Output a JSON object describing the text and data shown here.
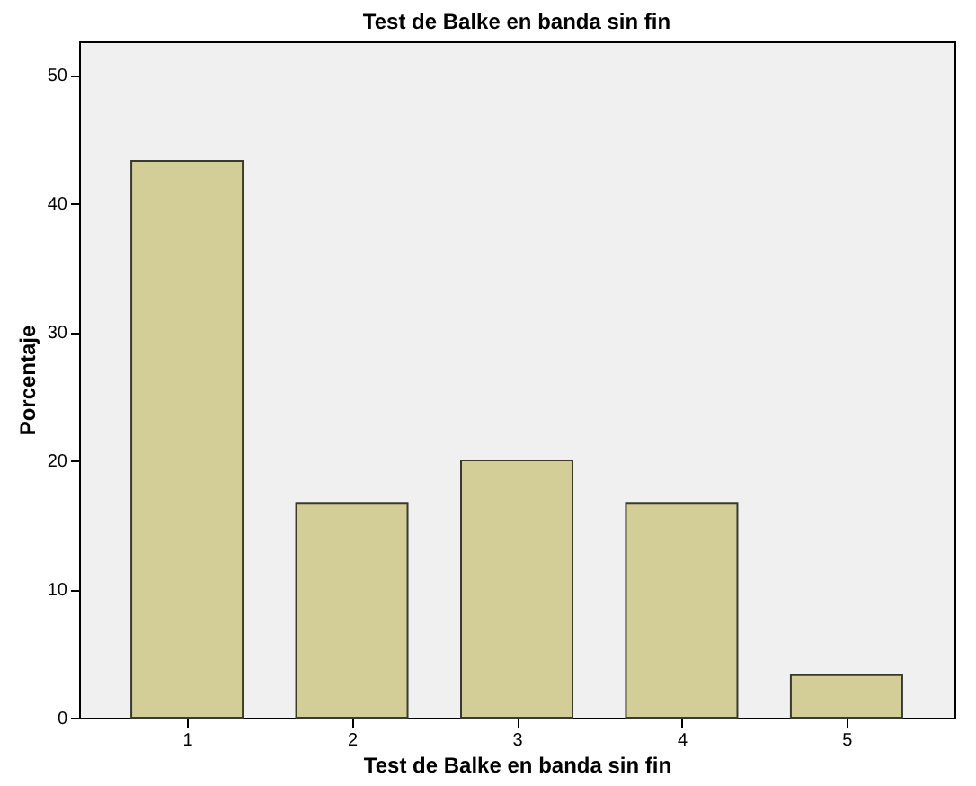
{
  "chart_data": {
    "type": "bar",
    "title": "Test de Balke en banda sin fin",
    "xlabel": "Test de Balke en banda sin fin",
    "ylabel": "Porcentaje",
    "categories": [
      "1",
      "2",
      "3",
      "4",
      "5"
    ],
    "values": [
      43.3,
      16.7,
      20,
      16.7,
      3.3
    ],
    "color": "#d3ce97",
    "ylim": [
      0,
      52.6
    ],
    "yticks": [
      0,
      10,
      20,
      30,
      40,
      50
    ],
    "grid": false
  }
}
